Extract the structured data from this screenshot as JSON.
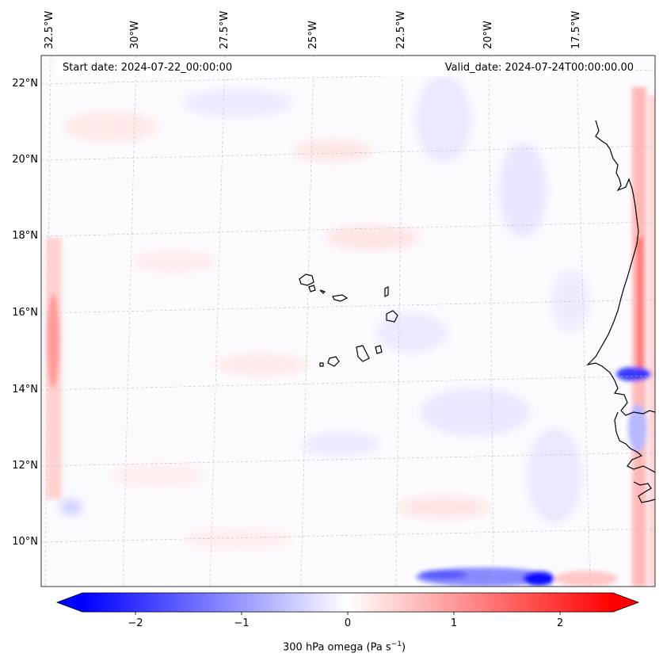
{
  "map": {
    "region": "Cape Verde and West African coast",
    "variable": "300 hPa omega",
    "start_date_text": "Start date: 2024-07-22_00:00:00",
    "valid_date_text": "Valid_date: 2024-07-24T00:00:00.00"
  },
  "lon_labels": [
    "32.5°W",
    "30°W",
    "27.5°W",
    "25°W",
    "22.5°W",
    "20°W",
    "17.5°W"
  ],
  "lat_labels": [
    "22°N",
    "20°N",
    "18°N",
    "16°N",
    "14°N",
    "12°N",
    "10°N"
  ],
  "colorbar": {
    "label": "300 hPa omega (Pa s",
    "label_sup": "−1",
    "label_end": ")",
    "ticks": [
      "−2",
      "−1",
      "0",
      "1",
      "2"
    ],
    "tick_values": [
      -2,
      -1,
      0,
      1,
      2
    ],
    "vmin": -2.5,
    "vmax": 2.5,
    "colors": {
      "negative": "#0000ff",
      "zero": "#ffffff",
      "positive": "#ff0000"
    }
  }
}
